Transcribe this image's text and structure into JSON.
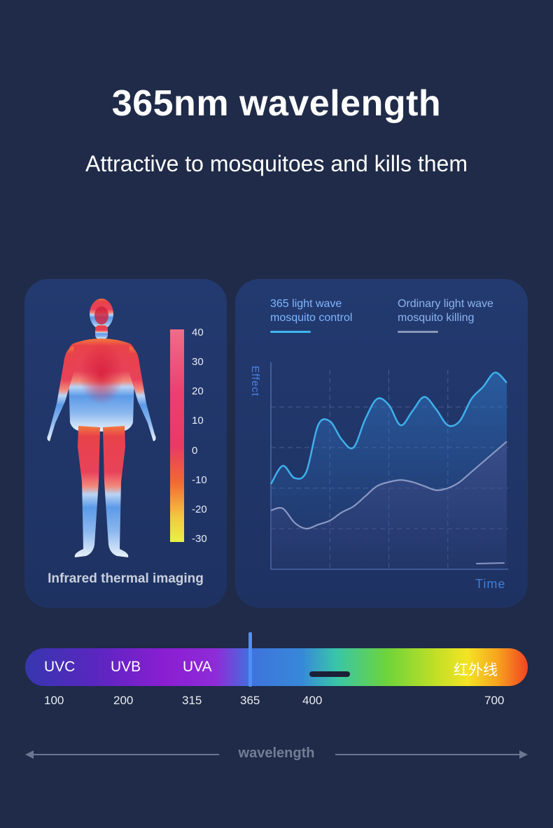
{
  "header": {
    "title": "365nm wavelength",
    "subtitle": "Attractive to mosquitoes and kills them"
  },
  "thermal": {
    "caption": "Infrared thermal imaging",
    "scale": [
      "40",
      "30",
      "20",
      "10",
      "0",
      "-10",
      "-20",
      "-30"
    ]
  },
  "chart_data": {
    "type": "line",
    "xlabel": "Time",
    "ylabel": "Effect",
    "grid": true,
    "legend_position": "top",
    "x": [
      0,
      5,
      10,
      15,
      20,
      25,
      30,
      35,
      40,
      45,
      50,
      55,
      60,
      65,
      70,
      75,
      80,
      85,
      90,
      95,
      100
    ],
    "series": [
      {
        "name": "365 light wave mosquito control",
        "color": "#3fb0ec",
        "values": [
          42,
          51,
          45,
          48,
          71,
          73,
          64,
          60,
          74,
          84,
          81,
          71,
          78,
          85,
          79,
          71,
          73,
          84,
          90,
          97,
          92
        ]
      },
      {
        "name": "Ordinary light wave mosquito killing",
        "color": "#8a98c4",
        "values": [
          29,
          30,
          23,
          20,
          22,
          24,
          28,
          31,
          36,
          41,
          43,
          44,
          43,
          41,
          39,
          40,
          43,
          48,
          53,
          58,
          63
        ]
      }
    ]
  },
  "spectrum": {
    "bands": [
      "UVC",
      "UVB",
      "UVA",
      "红外线"
    ],
    "ticks": [
      "100",
      "200",
      "315",
      "365",
      "400",
      "700"
    ],
    "axis_label": "wavelength"
  }
}
